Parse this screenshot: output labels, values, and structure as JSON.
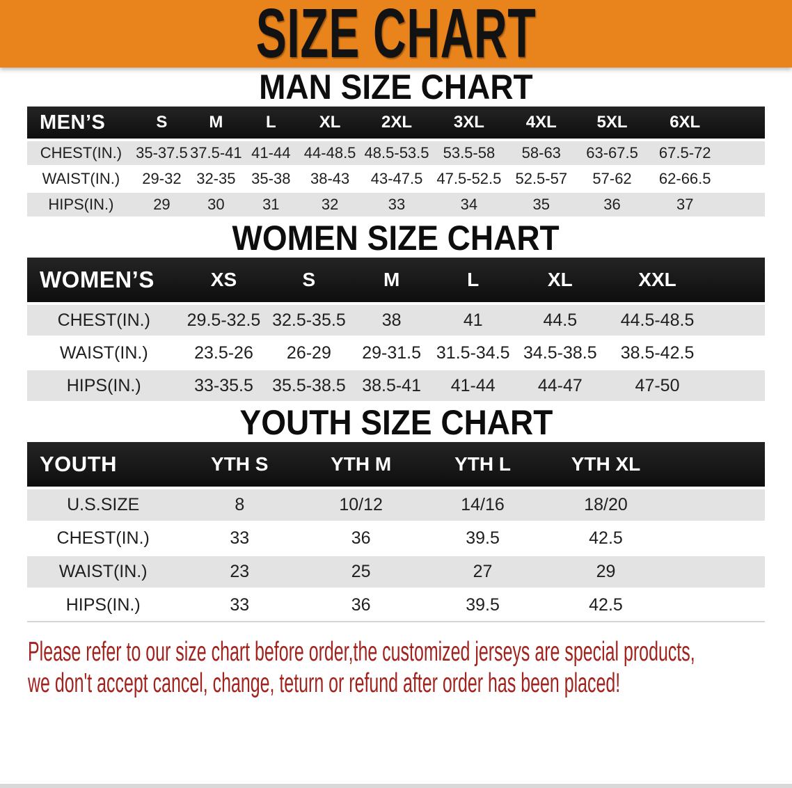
{
  "banner": {
    "title": "SIZE CHART",
    "bg_color": "#E8841B",
    "text_color": "#121212"
  },
  "sections": [
    {
      "id": "men",
      "heading": "MAN SIZE CHART",
      "table": {
        "label": "MEN’S",
        "columns": [
          "S",
          "M",
          "L",
          "XL",
          "2XL",
          "3XL",
          "4XL",
          "5XL",
          "6XL"
        ],
        "rows": [
          {
            "label": "CHEST(IN.)",
            "values": [
              "35-37.5",
              "37.5-41",
              "41-44",
              "44-48.5",
              "48.5-53.5",
              "53.5-58",
              "58-63",
              "63-67.5",
              "67.5-72"
            ]
          },
          {
            "label": "WAIST(IN.)",
            "values": [
              "29-32",
              "32-35",
              "35-38",
              "38-43",
              "43-47.5",
              "47.5-52.5",
              "52.5-57",
              "57-62",
              "62-66.5"
            ]
          },
          {
            "label": "HIPS(IN.)",
            "values": [
              "29",
              "30",
              "31",
              "32",
              "33",
              "34",
              "35",
              "36",
              "37"
            ]
          }
        ]
      }
    },
    {
      "id": "women",
      "heading": "WOMEN SIZE CHART",
      "table": {
        "label": "WOMEN’S",
        "columns": [
          "XS",
          "S",
          "M",
          "L",
          "XL",
          "XXL"
        ],
        "rows": [
          {
            "label": "CHEST(IN.)",
            "values": [
              "29.5-32.5",
              "32.5-35.5",
              "38",
              "41",
              "44.5",
              "44.5-48.5"
            ]
          },
          {
            "label": "WAIST(IN.)",
            "values": [
              "23.5-26",
              "26-29",
              "29-31.5",
              "31.5-34.5",
              "34.5-38.5",
              "38.5-42.5"
            ]
          },
          {
            "label": "HIPS(IN.)",
            "values": [
              "33-35.5",
              "35.5-38.5",
              "38.5-41",
              "41-44",
              "44-47",
              "47-50"
            ]
          }
        ]
      }
    },
    {
      "id": "youth",
      "heading": "YOUTH SIZE CHART",
      "table": {
        "label": "YOUTH",
        "columns": [
          "YTH S",
          "YTH M",
          "YTH L",
          "YTH XL"
        ],
        "rows": [
          {
            "label": "U.S.SIZE",
            "values": [
              "8",
              "10/12",
              "14/16",
              "18/20"
            ]
          },
          {
            "label": "CHEST(IN.)",
            "values": [
              "33",
              "36",
              "39.5",
              "42.5"
            ]
          },
          {
            "label": "WAIST(IN.)",
            "values": [
              "23",
              "25",
              "27",
              "29"
            ]
          },
          {
            "label": "HIPS(IN.)",
            "values": [
              "33",
              "36",
              "39.5",
              "42.5"
            ]
          }
        ]
      }
    }
  ],
  "footer": {
    "lines": [
      "Please refer to our size chart before order,the customized jerseys are special products,",
      "we don't accept cancel, change, teturn or refund after order has been placed!"
    ],
    "text_color": "#A0231E"
  }
}
